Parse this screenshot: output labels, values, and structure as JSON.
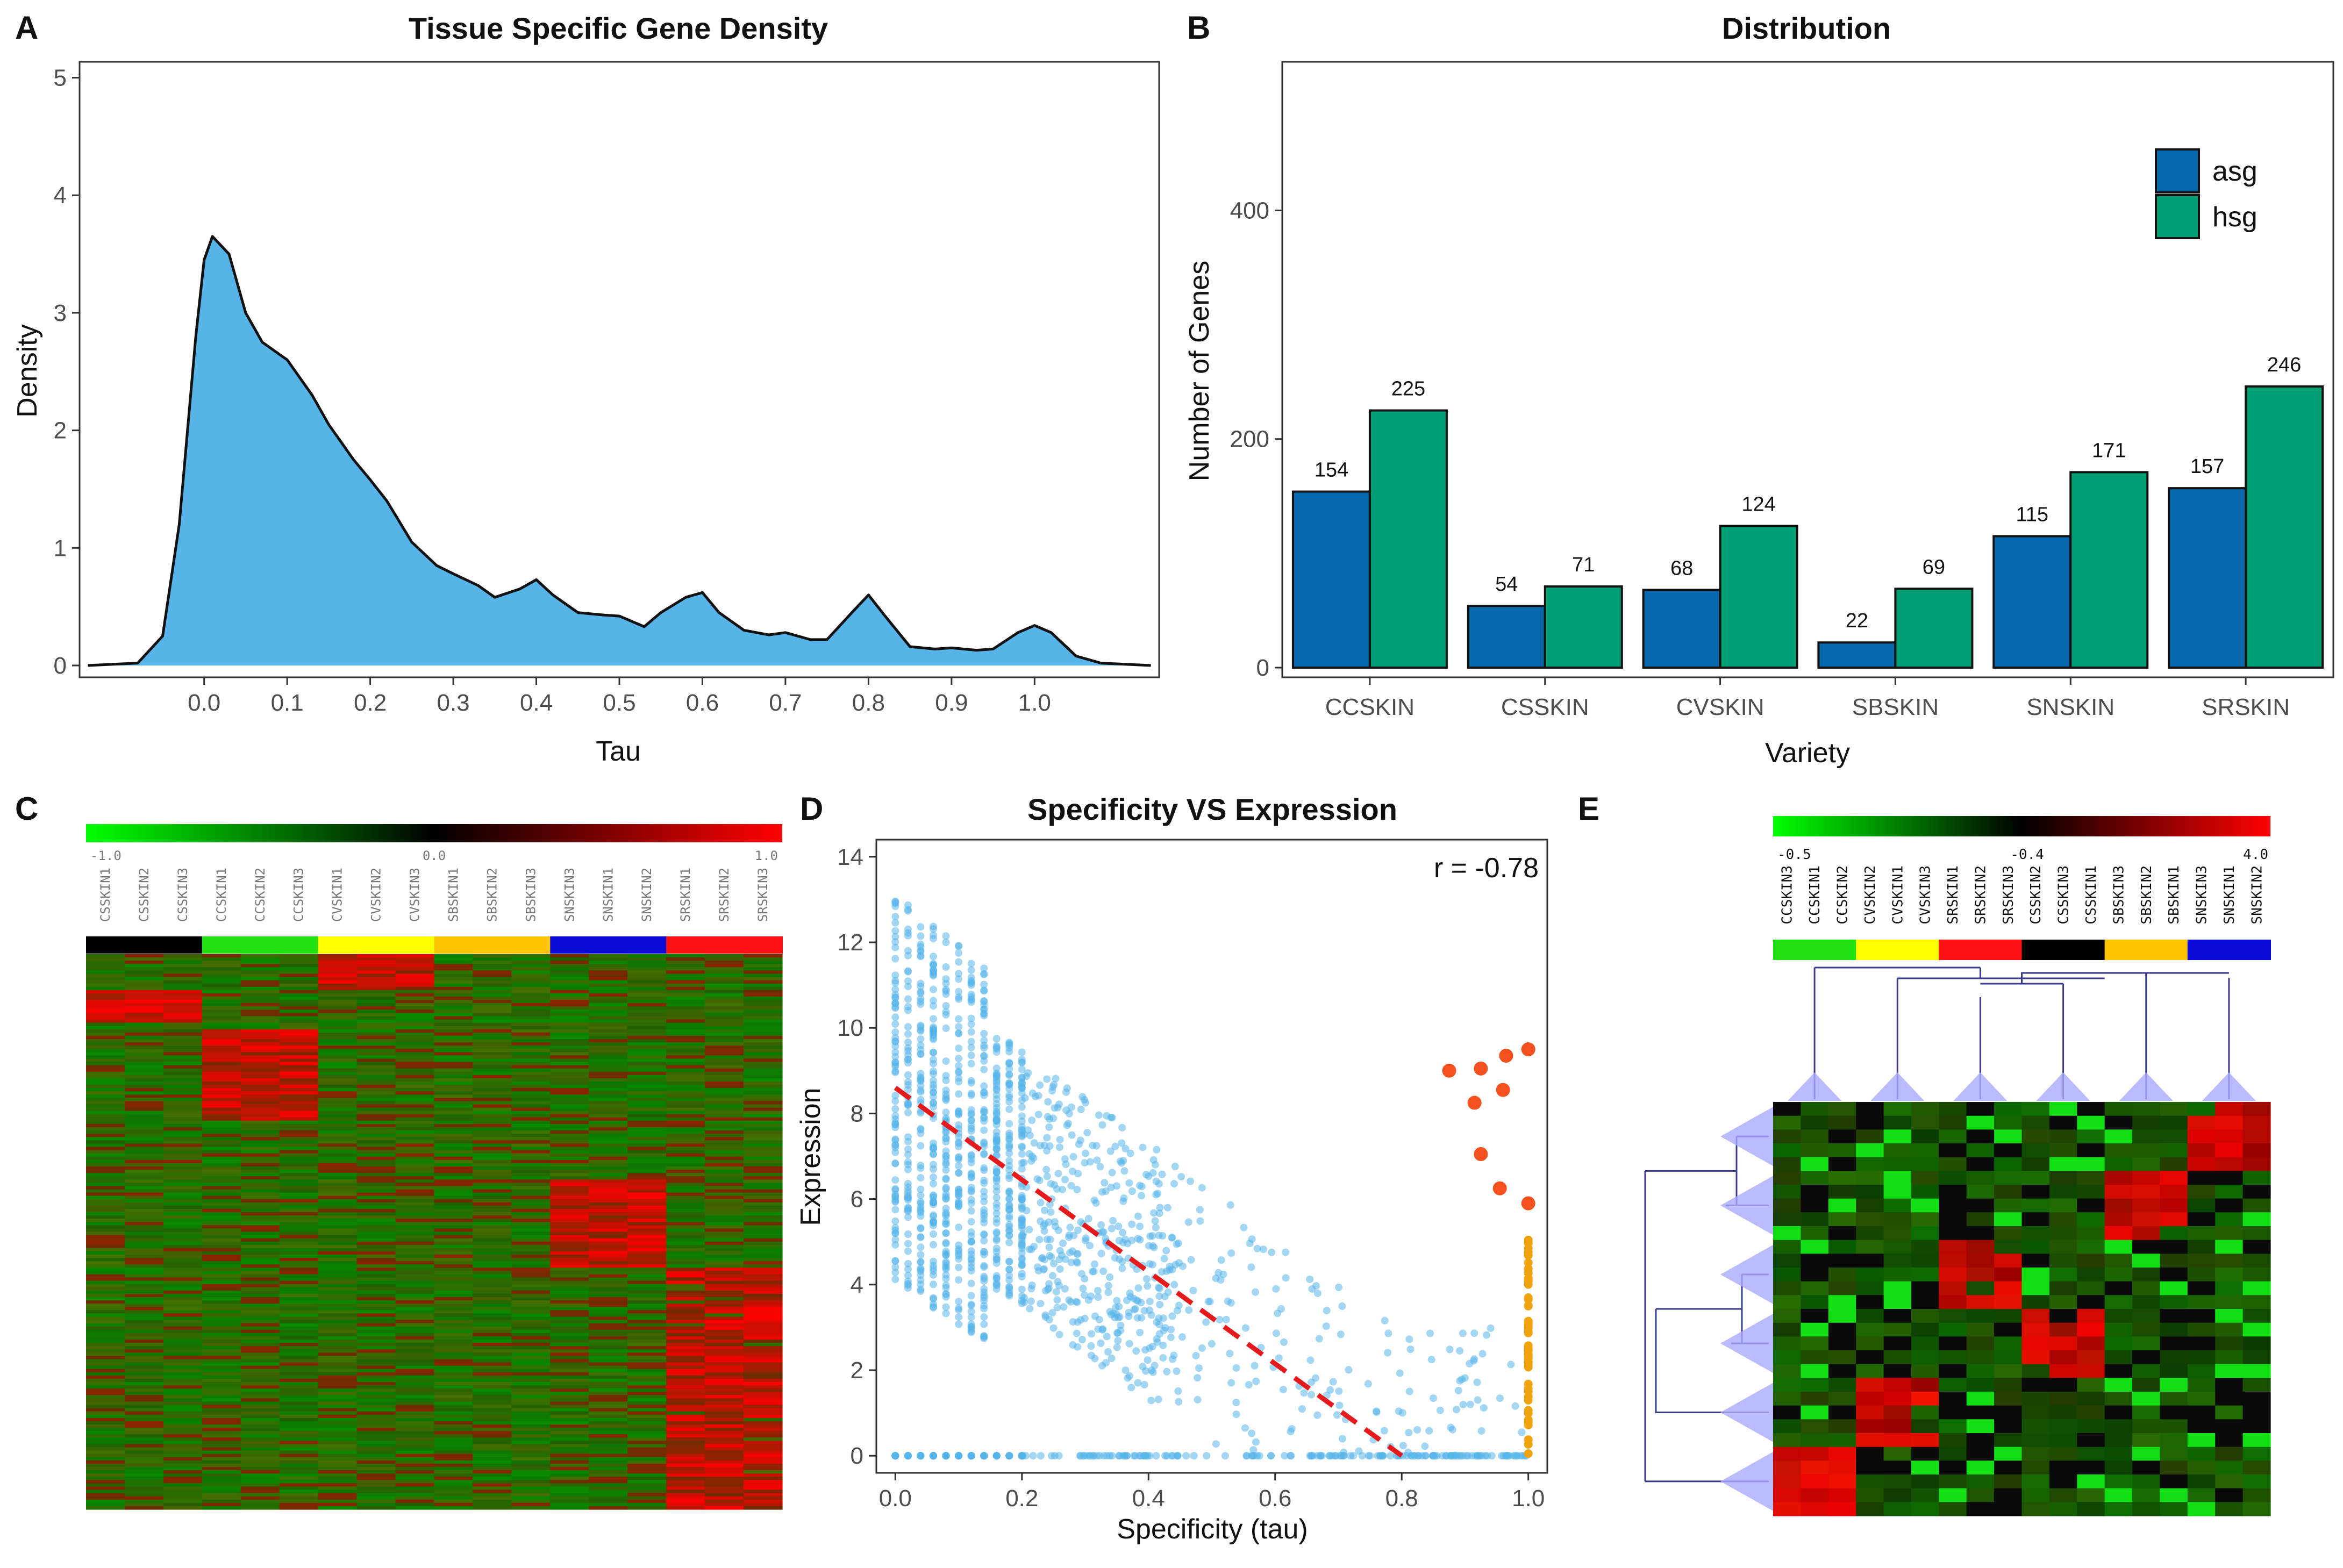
{
  "panel_labels": {
    "a": "A",
    "b": "B",
    "c": "C",
    "d": "D",
    "e": "E"
  },
  "chart_data": [
    {
      "panel": "A",
      "type": "area",
      "title": "Tissue Specific Gene Density",
      "xlabel": "Tau",
      "ylabel": "Density",
      "xlim": [
        -0.15,
        1.15
      ],
      "ylim": [
        0,
        5
      ],
      "xticks": [
        "0.0",
        "0.1",
        "0.2",
        "0.3",
        "0.4",
        "0.5",
        "0.6",
        "0.7",
        "0.8",
        "0.9",
        "1.0"
      ],
      "yticks": [
        "0",
        "1",
        "2",
        "3",
        "4",
        "5"
      ],
      "x": [
        -0.14,
        -0.08,
        -0.05,
        -0.03,
        -0.01,
        0.0,
        0.01,
        0.03,
        0.05,
        0.07,
        0.1,
        0.13,
        0.15,
        0.18,
        0.2,
        0.22,
        0.25,
        0.28,
        0.3,
        0.33,
        0.35,
        0.38,
        0.4,
        0.42,
        0.45,
        0.48,
        0.5,
        0.53,
        0.55,
        0.58,
        0.6,
        0.62,
        0.65,
        0.68,
        0.7,
        0.73,
        0.75,
        0.78,
        0.8,
        0.82,
        0.85,
        0.88,
        0.9,
        0.93,
        0.95,
        0.98,
        1.0,
        1.02,
        1.05,
        1.08,
        1.14
      ],
      "y": [
        0.0,
        0.02,
        0.25,
        1.2,
        2.8,
        3.45,
        3.65,
        3.5,
        3.0,
        2.75,
        2.6,
        2.3,
        2.05,
        1.75,
        1.58,
        1.4,
        1.05,
        0.85,
        0.78,
        0.68,
        0.58,
        0.65,
        0.73,
        0.6,
        0.45,
        0.43,
        0.42,
        0.33,
        0.45,
        0.58,
        0.62,
        0.45,
        0.3,
        0.26,
        0.28,
        0.22,
        0.22,
        0.45,
        0.6,
        0.42,
        0.16,
        0.14,
        0.15,
        0.13,
        0.14,
        0.28,
        0.34,
        0.28,
        0.08,
        0.02,
        0.0
      ],
      "fill": "#56b4e9",
      "line": "#111111"
    },
    {
      "panel": "B",
      "type": "bar",
      "title": "Distribution",
      "xlabel": "Variety",
      "ylabel": "Number of Genes",
      "ylim": [
        0,
        530
      ],
      "yticks": [
        "0",
        "200",
        "400"
      ],
      "categories": [
        "CCSKIN",
        "CSSKIN",
        "CVSKIN",
        "SBSKIN",
        "SNSKIN",
        "SRSKIN"
      ],
      "series": [
        {
          "name": "asg",
          "values": [
            154,
            54,
            68,
            22,
            115,
            157
          ],
          "color": "#0868ac"
        },
        {
          "name": "hsg",
          "values": [
            225,
            71,
            124,
            69,
            171,
            246
          ],
          "color": "#009e73"
        }
      ],
      "legend_position": "top-right"
    },
    {
      "panel": "C",
      "type": "heatmap",
      "scale_labels": [
        "-1.0",
        "0.0",
        "1.0"
      ],
      "columns": [
        "CSSKIN1",
        "CSSKIN2",
        "CSSKIN3",
        "CCSKIN1",
        "CCSKIN2",
        "CCSKIN3",
        "CVSKIN1",
        "CVSKIN2",
        "CVSKIN3",
        "SBSKIN1",
        "SBSKIN2",
        "SBSKIN3",
        "SNSKIN3",
        "SNSKIN1",
        "SNSKIN2",
        "SRSKIN1",
        "SRSKIN2",
        "SRSKIN3"
      ],
      "group_colors": [
        "#000000",
        "#22e010",
        "#ffff00",
        "#ffc400",
        "#0a0ad6",
        "#ff1010"
      ],
      "scale_colors": [
        "#00ff00",
        "#000000",
        "#ff0000"
      ]
    },
    {
      "panel": "D",
      "type": "scatter",
      "title": "Specificity VS Expression",
      "xlabel": "Specificity (tau)",
      "ylabel": "Expression",
      "xlim": [
        -0.03,
        1.03
      ],
      "ylim": [
        -0.4,
        14.4
      ],
      "xticks": [
        "0.0",
        "0.2",
        "0.4",
        "0.6",
        "0.8",
        "1.0"
      ],
      "yticks": [
        "0",
        "2",
        "4",
        "6",
        "8",
        "10",
        "12",
        "14"
      ],
      "annotation": "r = -0.78",
      "regression": {
        "x": [
          0.0,
          0.8
        ],
        "y": [
          8.6,
          0.0
        ],
        "color": "#e41a1c"
      },
      "point_color": "#56b4e9",
      "highlight_points": {
        "color": "#f4511e",
        "x": [
          0.875,
          0.925,
          0.965,
          1.0,
          0.915,
          0.96,
          0.925,
          0.955,
          1.0
        ],
        "y": [
          9.0,
          9.05,
          9.35,
          9.5,
          8.25,
          8.55,
          7.05,
          6.25,
          5.9
        ]
      },
      "tau1_points": {
        "color": "#f0a30a",
        "ymin": 0.0,
        "ymax": 5.2
      }
    },
    {
      "panel": "E",
      "type": "heatmap",
      "scale_labels": [
        "-0.5",
        "-0.4",
        "4.0"
      ],
      "columns": [
        "CCSKIN3",
        "CCSKIN1",
        "CCSKIN2",
        "CVSKIN2",
        "CVSKIN1",
        "CVSKIN3",
        "SRSKIN1",
        "SRSKIN2",
        "SRSKIN3",
        "CSSKIN2",
        "CSSKIN3",
        "CSSKIN1",
        "SBSKIN3",
        "SBSKIN2",
        "SBSKIN1",
        "SNSKIN3",
        "SNSKIN1",
        "SNSKIN2"
      ],
      "group_colors": [
        "#22e010",
        "#ffff00",
        "#ff1010",
        "#000000",
        "#ffc400",
        "#0a0ad6"
      ],
      "scale_colors": [
        "#00ff00",
        "#000000",
        "#ff0000"
      ]
    }
  ]
}
